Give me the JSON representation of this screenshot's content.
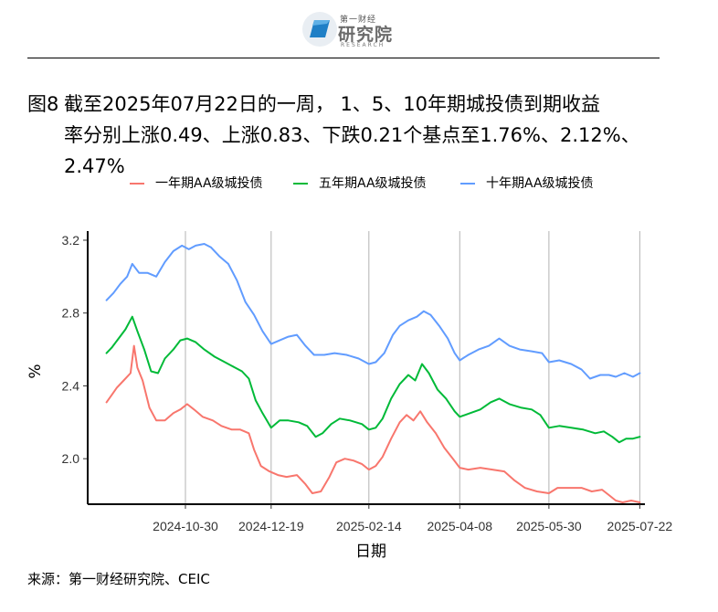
{
  "header": {
    "logo_small": "第一财经",
    "logo_main": "研究院",
    "logo_sub": "RESEARCH"
  },
  "title": {
    "label": "图8",
    "line1": "截至2025年07月22日的一周， 1、5、10年期城投债到期收益",
    "line2": "率分别上涨0.49、上涨0.83、下跌0.21个基点至1.76%、2.12%、",
    "line3": "2.47%"
  },
  "source": "来源：第一财经研究院、CEIC",
  "colors": {
    "s1": "#f8766d",
    "s2": "#00ba38",
    "s3": "#619cff"
  },
  "chart_data": {
    "type": "line",
    "xlabel": "日期",
    "ylabel": "%",
    "x_range": [
      "2024-09-03",
      "2025-07-25"
    ],
    "ylim": [
      1.75,
      3.25
    ],
    "yticks": [
      2.0,
      2.4,
      2.8,
      3.2
    ],
    "xticks": [
      "2024-10-30",
      "2024-12-19",
      "2025-02-14",
      "2025-04-08",
      "2025-05-30",
      "2025-07-22"
    ],
    "grid": {
      "vertical": true,
      "horizontal": false
    },
    "legend_position": "top",
    "series": [
      {
        "name": "一年期AA级城投债",
        "color": "#f8766d",
        "points": [
          [
            "2024-09-14",
            2.31
          ],
          [
            "2024-09-17",
            2.35
          ],
          [
            "2024-09-20",
            2.39
          ],
          [
            "2024-09-24",
            2.43
          ],
          [
            "2024-09-28",
            2.47
          ],
          [
            "2024-09-30",
            2.62
          ],
          [
            "2024-10-02",
            2.5
          ],
          [
            "2024-10-05",
            2.43
          ],
          [
            "2024-10-09",
            2.28
          ],
          [
            "2024-10-13",
            2.21
          ],
          [
            "2024-10-18",
            2.21
          ],
          [
            "2024-10-23",
            2.25
          ],
          [
            "2024-10-27",
            2.27
          ],
          [
            "2024-10-31",
            2.3
          ],
          [
            "2024-11-04",
            2.27
          ],
          [
            "2024-11-09",
            2.23
          ],
          [
            "2024-11-15",
            2.21
          ],
          [
            "2024-11-20",
            2.18
          ],
          [
            "2024-11-26",
            2.16
          ],
          [
            "2024-12-01",
            2.16
          ],
          [
            "2024-12-06",
            2.14
          ],
          [
            "2024-12-09",
            2.05
          ],
          [
            "2024-12-13",
            1.96
          ],
          [
            "2024-12-18",
            1.93
          ],
          [
            "2024-12-23",
            1.91
          ],
          [
            "2024-12-28",
            1.9
          ],
          [
            "2025-01-03",
            1.91
          ],
          [
            "2025-01-08",
            1.86
          ],
          [
            "2025-01-12",
            1.81
          ],
          [
            "2025-01-17",
            1.82
          ],
          [
            "2025-01-22",
            1.9
          ],
          [
            "2025-01-26",
            1.98
          ],
          [
            "2025-01-31",
            2.0
          ],
          [
            "2025-02-05",
            1.99
          ],
          [
            "2025-02-10",
            1.97
          ],
          [
            "2025-02-14",
            1.94
          ],
          [
            "2025-02-18",
            1.96
          ],
          [
            "2025-02-22",
            2.01
          ],
          [
            "2025-02-27",
            2.11
          ],
          [
            "2025-03-04",
            2.2
          ],
          [
            "2025-03-08",
            2.24
          ],
          [
            "2025-03-12",
            2.21
          ],
          [
            "2025-03-16",
            2.26
          ],
          [
            "2025-03-20",
            2.2
          ],
          [
            "2025-03-25",
            2.14
          ],
          [
            "2025-03-30",
            2.06
          ],
          [
            "2025-04-04",
            2.0
          ],
          [
            "2025-04-08",
            1.95
          ],
          [
            "2025-04-13",
            1.94
          ],
          [
            "2025-04-20",
            1.95
          ],
          [
            "2025-04-27",
            1.94
          ],
          [
            "2025-05-04",
            1.93
          ],
          [
            "2025-05-10",
            1.88
          ],
          [
            "2025-05-16",
            1.84
          ],
          [
            "2025-05-23",
            1.82
          ],
          [
            "2025-05-30",
            1.81
          ],
          [
            "2025-06-04",
            1.84
          ],
          [
            "2025-06-11",
            1.84
          ],
          [
            "2025-06-18",
            1.84
          ],
          [
            "2025-06-24",
            1.82
          ],
          [
            "2025-06-30",
            1.83
          ],
          [
            "2025-07-04",
            1.8
          ],
          [
            "2025-07-08",
            1.77
          ],
          [
            "2025-07-12",
            1.76
          ],
          [
            "2025-07-17",
            1.77
          ],
          [
            "2025-07-22",
            1.76
          ]
        ]
      },
      {
        "name": "五年期AA级城投债",
        "color": "#00ba38",
        "points": [
          [
            "2024-09-14",
            2.58
          ],
          [
            "2024-09-17",
            2.61
          ],
          [
            "2024-09-21",
            2.66
          ],
          [
            "2024-09-25",
            2.71
          ],
          [
            "2024-09-29",
            2.78
          ],
          [
            "2024-10-02",
            2.7
          ],
          [
            "2024-10-06",
            2.6
          ],
          [
            "2024-10-10",
            2.48
          ],
          [
            "2024-10-14",
            2.47
          ],
          [
            "2024-10-18",
            2.55
          ],
          [
            "2024-10-23",
            2.6
          ],
          [
            "2024-10-27",
            2.65
          ],
          [
            "2024-10-31",
            2.66
          ],
          [
            "2024-11-05",
            2.64
          ],
          [
            "2024-11-10",
            2.6
          ],
          [
            "2024-11-16",
            2.56
          ],
          [
            "2024-11-22",
            2.53
          ],
          [
            "2024-11-28",
            2.5
          ],
          [
            "2024-12-02",
            2.48
          ],
          [
            "2024-12-06",
            2.44
          ],
          [
            "2024-12-10",
            2.32
          ],
          [
            "2024-12-14",
            2.25
          ],
          [
            "2024-12-19",
            2.17
          ],
          [
            "2024-12-24",
            2.21
          ],
          [
            "2024-12-29",
            2.21
          ],
          [
            "2025-01-04",
            2.2
          ],
          [
            "2025-01-09",
            2.18
          ],
          [
            "2025-01-14",
            2.12
          ],
          [
            "2025-01-18",
            2.14
          ],
          [
            "2025-01-23",
            2.19
          ],
          [
            "2025-01-28",
            2.22
          ],
          [
            "2025-02-03",
            2.21
          ],
          [
            "2025-02-10",
            2.19
          ],
          [
            "2025-02-14",
            2.16
          ],
          [
            "2025-02-18",
            2.17
          ],
          [
            "2025-02-22",
            2.22
          ],
          [
            "2025-02-27",
            2.33
          ],
          [
            "2025-03-04",
            2.41
          ],
          [
            "2025-03-09",
            2.46
          ],
          [
            "2025-03-13",
            2.43
          ],
          [
            "2025-03-17",
            2.52
          ],
          [
            "2025-03-21",
            2.47
          ],
          [
            "2025-03-26",
            2.38
          ],
          [
            "2025-03-31",
            2.33
          ],
          [
            "2025-04-05",
            2.26
          ],
          [
            "2025-04-08",
            2.23
          ],
          [
            "2025-04-14",
            2.25
          ],
          [
            "2025-04-20",
            2.27
          ],
          [
            "2025-04-26",
            2.31
          ],
          [
            "2025-05-01",
            2.33
          ],
          [
            "2025-05-07",
            2.3
          ],
          [
            "2025-05-14",
            2.28
          ],
          [
            "2025-05-20",
            2.27
          ],
          [
            "2025-05-25",
            2.24
          ],
          [
            "2025-05-30",
            2.17
          ],
          [
            "2025-06-05",
            2.18
          ],
          [
            "2025-06-12",
            2.17
          ],
          [
            "2025-06-19",
            2.16
          ],
          [
            "2025-06-26",
            2.14
          ],
          [
            "2025-07-01",
            2.15
          ],
          [
            "2025-07-06",
            2.12
          ],
          [
            "2025-07-10",
            2.09
          ],
          [
            "2025-07-14",
            2.11
          ],
          [
            "2025-07-18",
            2.11
          ],
          [
            "2025-07-22",
            2.12
          ]
        ]
      },
      {
        "name": "十年期AA级城投债",
        "color": "#619cff",
        "points": [
          [
            "2024-09-14",
            2.87
          ],
          [
            "2024-09-18",
            2.91
          ],
          [
            "2024-09-22",
            2.96
          ],
          [
            "2024-09-26",
            3.0
          ],
          [
            "2024-09-29",
            3.07
          ],
          [
            "2024-10-03",
            3.02
          ],
          [
            "2024-10-08",
            3.02
          ],
          [
            "2024-10-13",
            3.0
          ],
          [
            "2024-10-18",
            3.08
          ],
          [
            "2024-10-23",
            3.14
          ],
          [
            "2024-10-28",
            3.17
          ],
          [
            "2024-11-01",
            3.15
          ],
          [
            "2024-11-05",
            3.17
          ],
          [
            "2024-11-10",
            3.18
          ],
          [
            "2024-11-14",
            3.16
          ],
          [
            "2024-11-19",
            3.11
          ],
          [
            "2024-11-24",
            3.07
          ],
          [
            "2024-11-29",
            2.98
          ],
          [
            "2024-12-04",
            2.86
          ],
          [
            "2024-12-09",
            2.79
          ],
          [
            "2024-12-14",
            2.7
          ],
          [
            "2024-12-19",
            2.63
          ],
          [
            "2024-12-24",
            2.65
          ],
          [
            "2024-12-29",
            2.67
          ],
          [
            "2025-01-03",
            2.68
          ],
          [
            "2025-01-08",
            2.62
          ],
          [
            "2025-01-13",
            2.57
          ],
          [
            "2025-01-19",
            2.57
          ],
          [
            "2025-01-25",
            2.58
          ],
          [
            "2025-02-01",
            2.57
          ],
          [
            "2025-02-08",
            2.55
          ],
          [
            "2025-02-14",
            2.52
          ],
          [
            "2025-02-18",
            2.53
          ],
          [
            "2025-02-23",
            2.58
          ],
          [
            "2025-02-28",
            2.68
          ],
          [
            "2025-03-04",
            2.73
          ],
          [
            "2025-03-09",
            2.76
          ],
          [
            "2025-03-14",
            2.78
          ],
          [
            "2025-03-18",
            2.81
          ],
          [
            "2025-03-22",
            2.79
          ],
          [
            "2025-03-27",
            2.73
          ],
          [
            "2025-04-01",
            2.66
          ],
          [
            "2025-04-05",
            2.58
          ],
          [
            "2025-04-08",
            2.54
          ],
          [
            "2025-04-13",
            2.57
          ],
          [
            "2025-04-19",
            2.6
          ],
          [
            "2025-04-25",
            2.62
          ],
          [
            "2025-05-01",
            2.66
          ],
          [
            "2025-05-07",
            2.62
          ],
          [
            "2025-05-13",
            2.6
          ],
          [
            "2025-05-20",
            2.59
          ],
          [
            "2025-05-26",
            2.58
          ],
          [
            "2025-05-30",
            2.53
          ],
          [
            "2025-06-05",
            2.54
          ],
          [
            "2025-06-12",
            2.52
          ],
          [
            "2025-06-18",
            2.49
          ],
          [
            "2025-06-23",
            2.44
          ],
          [
            "2025-06-29",
            2.46
          ],
          [
            "2025-07-04",
            2.46
          ],
          [
            "2025-07-08",
            2.45
          ],
          [
            "2025-07-13",
            2.47
          ],
          [
            "2025-07-18",
            2.45
          ],
          [
            "2025-07-22",
            2.47
          ]
        ]
      }
    ]
  }
}
